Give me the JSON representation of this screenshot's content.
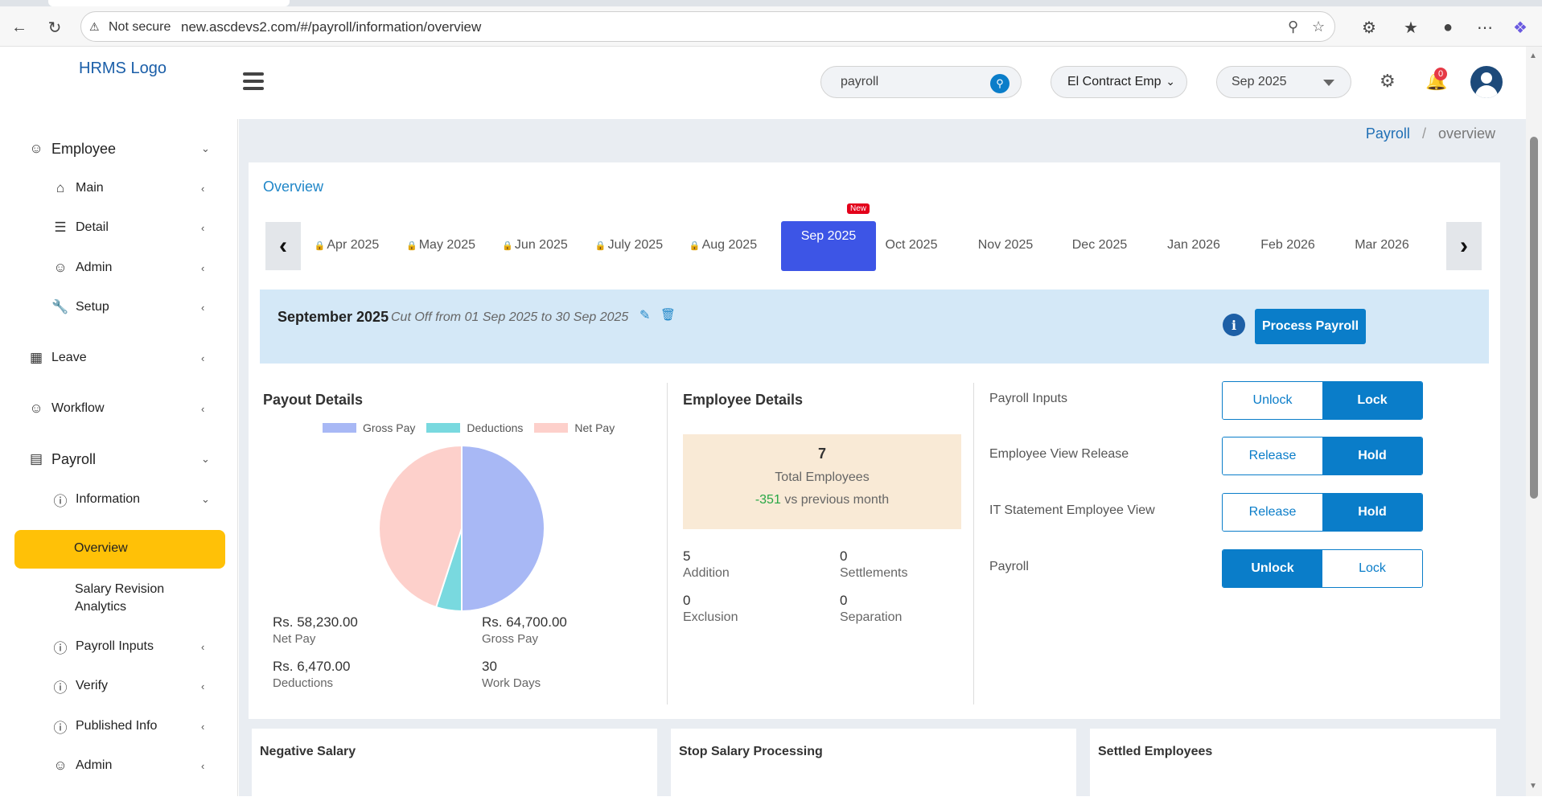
{
  "browser": {
    "security": "Not secure",
    "url": "new.ascdevs2.com/#/payroll/information/overview"
  },
  "header": {
    "logo_alt": "HRMS Logo",
    "search_value": "payroll",
    "employee_filter": "El Contract Emp",
    "month_filter": "Sep 2025",
    "notification_count": "0"
  },
  "sidebar": {
    "employee": "Employee",
    "main": "Main",
    "detail": "Detail",
    "admin": "Admin",
    "setup": "Setup",
    "leave": "Leave",
    "workflow": "Workflow",
    "payroll": "Payroll",
    "information": "Information",
    "overview": "Overview",
    "salary_revision_1": "Salary Revision",
    "salary_revision_2": "Analytics",
    "payroll_inputs": "Payroll Inputs",
    "verify": "Verify",
    "published_info": "Published Info",
    "admin2": "Admin"
  },
  "breadcrumb": {
    "parent": "Payroll",
    "separator": "/",
    "current": "overview"
  },
  "overview": {
    "title": "Overview",
    "months": [
      "Apr 2025",
      "May 2025",
      "Jun 2025",
      "July 2025",
      "Aug 2025",
      "Sep 2025",
      "Oct 2025",
      "Nov 2025",
      "Dec 2025",
      "Jan 2026",
      "Feb 2026",
      "Mar 2026"
    ],
    "locked_months": [
      "Apr 2025",
      "May 2025",
      "Jun 2025",
      "July 2025",
      "Aug 2025"
    ],
    "active_month": "Sep 2025",
    "new_badge": "New",
    "period_title": "September 2025",
    "cutoff": "Cut Off from 01 Sep 2025 to 30 Sep 2025",
    "process_button": "Process Payroll"
  },
  "payout": {
    "title": "Payout Details",
    "legend": [
      "Gross Pay",
      "Deductions",
      "Net Pay"
    ],
    "net_pay_value": "Rs. 58,230.00",
    "net_pay_label": "Net Pay",
    "gross_pay_value": "Rs. 64,700.00",
    "gross_pay_label": "Gross Pay",
    "deductions_value": "Rs. 6,470.00",
    "deductions_label": "Deductions",
    "work_days_value": "30",
    "work_days_label": "Work Days"
  },
  "chart_data": {
    "type": "pie",
    "categories": [
      "Gross Pay",
      "Deductions",
      "Net Pay"
    ],
    "values": [
      64700,
      6470,
      58230
    ],
    "colors": [
      "#a8b8f5",
      "#79d9df",
      "#fdd0cb"
    ],
    "legend_position": "top"
  },
  "employee_details": {
    "title": "Employee Details",
    "total": "7",
    "total_label": "Total Employees",
    "delta": "-351",
    "delta_label": "vs previous month",
    "addition_value": "5",
    "addition_label": "Addition",
    "settlements_value": "0",
    "settlements_label": "Settlements",
    "exclusion_value": "0",
    "exclusion_label": "Exclusion",
    "separation_value": "0",
    "separation_label": "Separation"
  },
  "controls": {
    "payroll_inputs": "Payroll Inputs",
    "employee_view_release": "Employee View Release",
    "it_statement": "IT Statement Employee View",
    "payroll": "Payroll",
    "unlock": "Unlock",
    "lock": "Lock",
    "release": "Release",
    "hold": "Hold"
  },
  "bottom": {
    "negative_salary": "Negative Salary",
    "stop_salary": "Stop Salary Processing",
    "settled": "Settled Employees"
  },
  "colors": {
    "primary": "#0a7dc9",
    "active_month": "#3d55e6",
    "sidebar_active": "#ffc107"
  }
}
